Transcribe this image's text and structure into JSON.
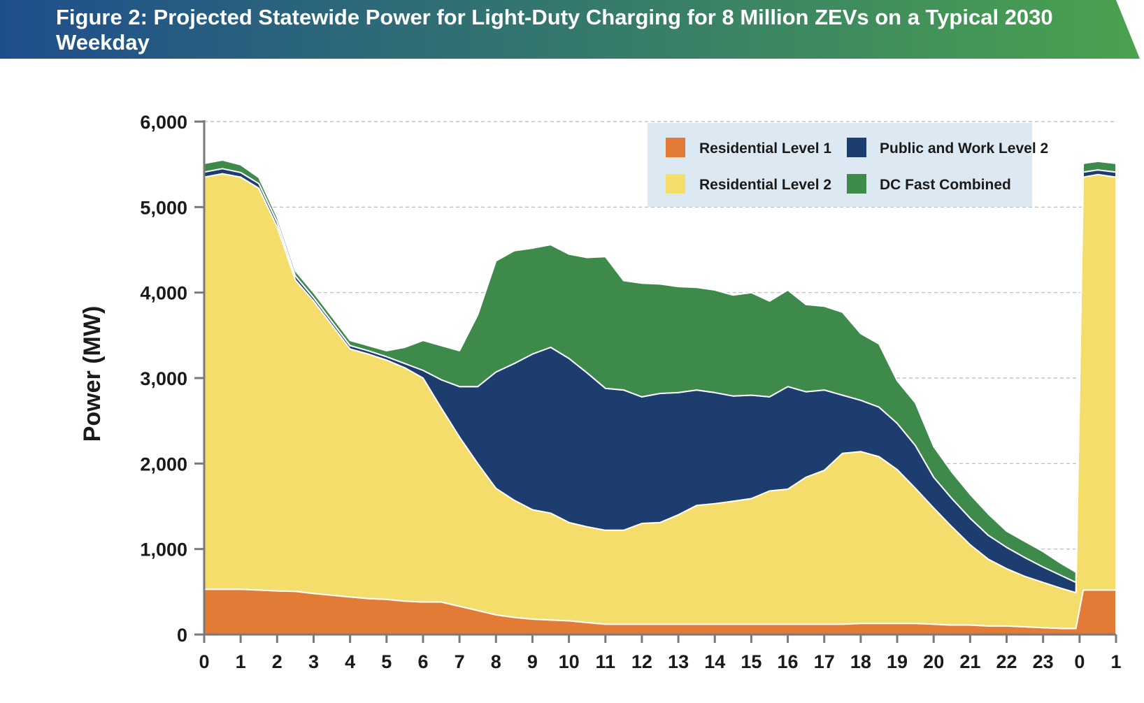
{
  "figure_title": "Figure 2: Projected Statewide Power for Light-Duty Charging for 8 Million ZEVs on a Typical 2030 Weekday",
  "colors": {
    "banner_start": "#1f4e8c",
    "banner_end": "#4aa24e",
    "residential_l1": "#e27b36",
    "residential_l2": "#f5dd6c",
    "public_work_l2": "#1c3d6e",
    "dc_fast": "#3d8a4a",
    "legend_bg": "#dde9f2"
  },
  "chart_data": {
    "type": "area",
    "stacked": true,
    "ylabel": "Power (MW)",
    "xlabel": "",
    "ylim": [
      0,
      6000
    ],
    "y_ticks": [
      "0",
      "1,000",
      "2,000",
      "3,000",
      "4,000",
      "5,000",
      "6,000"
    ],
    "y_tick_values": [
      0,
      1000,
      2000,
      3000,
      4000,
      5000,
      6000
    ],
    "x_ticks": [
      "0",
      "1",
      "2",
      "3",
      "4",
      "5",
      "6",
      "7",
      "8",
      "9",
      "10",
      "11",
      "12",
      "13",
      "14",
      "15",
      "16",
      "17",
      "18",
      "19",
      "20",
      "21",
      "22",
      "23",
      "0",
      "1"
    ],
    "x_tick_values": [
      0,
      1,
      2,
      3,
      4,
      5,
      6,
      7,
      8,
      9,
      10,
      11,
      12,
      13,
      14,
      15,
      16,
      17,
      18,
      19,
      20,
      21,
      22,
      23,
      24,
      25
    ],
    "xlim": [
      0,
      25
    ],
    "grid": "horizontal dashed",
    "legend_position": "top-right",
    "x": [
      0,
      0.5,
      1,
      1.5,
      2,
      2.5,
      3,
      3.5,
      4,
      4.5,
      5,
      5.5,
      6,
      6.5,
      7,
      7.5,
      8,
      8.5,
      9,
      9.5,
      10,
      10.5,
      11,
      11.5,
      12,
      12.5,
      13,
      13.5,
      14,
      14.5,
      15,
      15.5,
      16,
      16.5,
      17,
      17.5,
      18,
      18.5,
      19,
      19.5,
      20,
      20.5,
      21,
      21.5,
      22,
      22.5,
      23,
      23.5,
      23.9,
      24.1,
      24.5,
      25
    ],
    "series": [
      {
        "name": "Residential Level 1",
        "values": [
          530,
          530,
          530,
          520,
          510,
          505,
          480,
          460,
          440,
          420,
          410,
          390,
          380,
          380,
          330,
          280,
          230,
          200,
          180,
          170,
          160,
          140,
          120,
          120,
          120,
          120,
          120,
          120,
          120,
          120,
          120,
          120,
          120,
          120,
          120,
          120,
          130,
          130,
          130,
          130,
          120,
          110,
          110,
          100,
          100,
          90,
          80,
          70,
          70,
          520,
          520,
          520
        ]
      },
      {
        "name": "Residential Level 2",
        "values": [
          4820,
          4860,
          4820,
          4700,
          4260,
          3640,
          3420,
          3160,
          2900,
          2860,
          2800,
          2730,
          2620,
          2270,
          1980,
          1720,
          1480,
          1370,
          1280,
          1250,
          1150,
          1120,
          1100,
          1100,
          1180,
          1190,
          1280,
          1390,
          1410,
          1440,
          1470,
          1560,
          1580,
          1720,
          1800,
          2000,
          2010,
          1950,
          1800,
          1580,
          1360,
          1150,
          940,
          780,
          670,
          590,
          530,
          470,
          420,
          4830,
          4860,
          4830
        ]
      },
      {
        "name": "Public and Work Level 2",
        "values": [
          60,
          60,
          55,
          55,
          55,
          50,
          40,
          40,
          40,
          40,
          40,
          50,
          90,
          330,
          590,
          900,
          1360,
          1600,
          1820,
          1940,
          1920,
          1800,
          1660,
          1640,
          1480,
          1510,
          1430,
          1350,
          1300,
          1230,
          1210,
          1100,
          1200,
          1000,
          940,
          680,
          600,
          580,
          540,
          500,
          360,
          330,
          310,
          280,
          250,
          220,
          180,
          150,
          120,
          60,
          55,
          60
        ]
      },
      {
        "name": "DC Fast Combined",
        "values": [
          100,
          100,
          90,
          70,
          60,
          60,
          60,
          60,
          60,
          60,
          70,
          190,
          350,
          400,
          420,
          840,
          1300,
          1320,
          1240,
          1200,
          1220,
          1350,
          1540,
          1280,
          1330,
          1280,
          1240,
          1200,
          1200,
          1180,
          1200,
          1120,
          1130,
          1020,
          980,
          970,
          780,
          740,
          500,
          500,
          360,
          310,
          280,
          250,
          190,
          190,
          180,
          140,
          120,
          100,
          100,
          100
        ]
      }
    ]
  },
  "legend": [
    {
      "label": "Residential Level 1",
      "color_key": "residential_l1"
    },
    {
      "label": "Public and Work Level 2",
      "color_key": "public_work_l2"
    },
    {
      "label": "Residential Level 2",
      "color_key": "residential_l2"
    },
    {
      "label": "DC Fast Combined",
      "color_key": "dc_fast"
    }
  ]
}
